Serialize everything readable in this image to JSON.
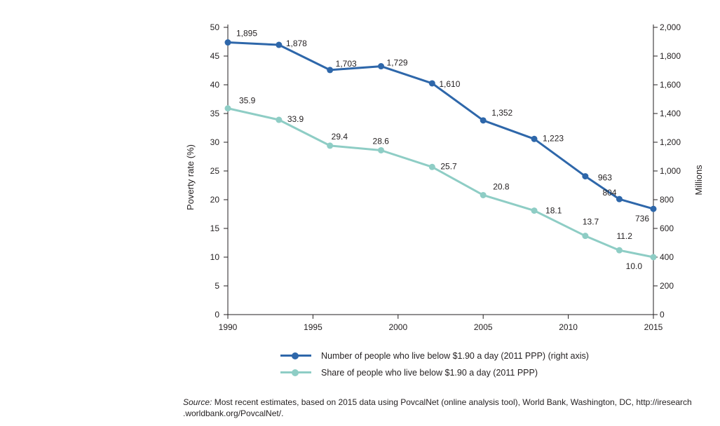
{
  "chart_data": {
    "type": "line",
    "x": [
      1990,
      1993,
      1996,
      1999,
      2002,
      2005,
      2008,
      2011,
      2013,
      2015
    ],
    "series": [
      {
        "name": "Number of people who live below $1.90 a day (2011 PPP) (right axis)",
        "axis": "right",
        "color": "#2e67aa",
        "values": [
          1895,
          1878,
          1703,
          1729,
          1610,
          1352,
          1223,
          963,
          804,
          736
        ],
        "labels": [
          "1,895",
          "1,878",
          "1,703",
          "1,729",
          "1,610",
          "1,352",
          "1,223",
          "963",
          "804",
          "736"
        ]
      },
      {
        "name": "Share of people who live below $1.90 a day (2011 PPP)",
        "axis": "left",
        "color": "#8ecdc5",
        "values": [
          35.9,
          33.9,
          29.4,
          28.6,
          25.7,
          20.8,
          18.1,
          13.7,
          11.2,
          10.0
        ],
        "labels": [
          "35.9",
          "33.9",
          "29.4",
          "28.6",
          "25.7",
          "20.8",
          "18.1",
          "13.7",
          "11.2",
          "10.0"
        ]
      }
    ],
    "xlim": [
      1990,
      2015
    ],
    "x_ticks": [
      "1990",
      "1995",
      "2000",
      "2005",
      "2010",
      "2015"
    ],
    "ylim": [
      0,
      50
    ],
    "y_ticks": [
      "0",
      "5",
      "10",
      "15",
      "20",
      "25",
      "30",
      "35",
      "40",
      "45",
      "50"
    ],
    "y2lim": [
      0,
      2000
    ],
    "y2_ticks": [
      "0",
      "200",
      "400",
      "600",
      "800",
      "1,000",
      "1,200",
      "1,400",
      "1,600",
      "1,800",
      "2,000"
    ],
    "ylabel": "Poverty  rate (%)",
    "y2label": "Millions",
    "xlabel": "",
    "grid": false,
    "legend_position": "bottom"
  },
  "source": {
    "label": "Source:",
    "text": "Most recent estimates, based on 2015 data using PovcalNet (online analysis tool), World Bank, Washington, DC, http://iresearch",
    "text2": ".worldbank.org/PovcalNet/."
  }
}
